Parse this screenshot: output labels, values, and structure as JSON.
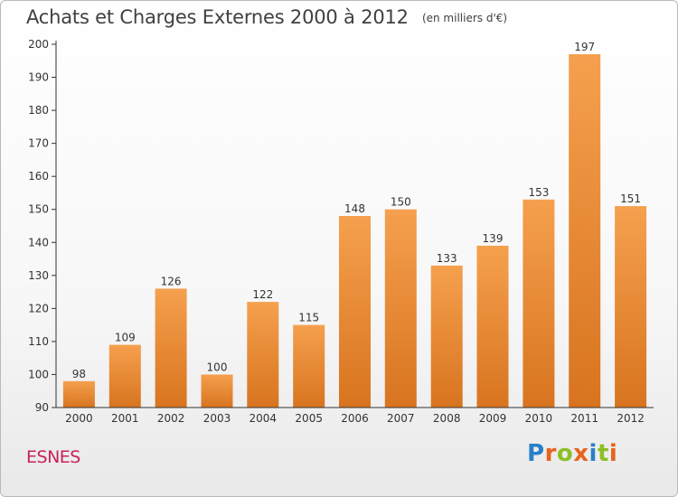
{
  "header": {
    "title": "Achats et Charges Externes 2000 à 2012",
    "subtitle": "(en milliers d'€)"
  },
  "footer": {
    "town": "ESNES",
    "brand": "Proxiti",
    "brand_letters": [
      {
        "ch": "P",
        "color": "#2a7fc9"
      },
      {
        "ch": "r",
        "color": "#e8631c"
      },
      {
        "ch": "o",
        "color": "#8cbf26"
      },
      {
        "ch": "x",
        "color": "#e8631c"
      },
      {
        "ch": "i",
        "color": "#2a7fc9"
      },
      {
        "ch": "t",
        "color": "#8cbf26"
      },
      {
        "ch": "i",
        "color": "#e8631c"
      }
    ]
  },
  "chart_data": {
    "type": "bar",
    "title": "Achats et Charges Externes 2000 à 2012",
    "subtitle": "(en milliers d'€)",
    "categories": [
      "2000",
      "2001",
      "2002",
      "2003",
      "2004",
      "2005",
      "2006",
      "2007",
      "2008",
      "2009",
      "2010",
      "2011",
      "2012"
    ],
    "values": [
      98,
      109,
      126,
      100,
      122,
      115,
      148,
      150,
      133,
      139,
      153,
      197,
      151
    ],
    "ylim": [
      90,
      200
    ],
    "yticks": [
      90,
      100,
      110,
      120,
      130,
      140,
      150,
      160,
      170,
      180,
      190,
      200
    ],
    "grid": false,
    "data_labels": true,
    "colors": {
      "bar_light": "#f5a04e",
      "bar_dark": "#d8741f",
      "axis": "#333333",
      "text": "#333333"
    }
  }
}
